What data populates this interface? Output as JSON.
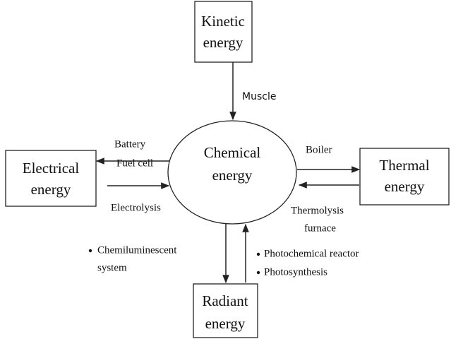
{
  "nodes": [
    {
      "id": "kinetic",
      "label": [
        "Kinetic",
        "energy"
      ]
    },
    {
      "id": "chemical",
      "label": [
        "Chemical",
        "energy"
      ]
    },
    {
      "id": "electrical",
      "label": [
        "Electrical",
        "energy"
      ]
    },
    {
      "id": "thermal",
      "label": [
        "Thermal",
        "energy"
      ]
    },
    {
      "id": "radiant",
      "label": [
        "Radiant",
        "energy"
      ]
    }
  ],
  "edges": [
    {
      "from": "kinetic",
      "to": "chemical",
      "label": [
        "Muscle"
      ]
    },
    {
      "from": "chemical",
      "to": "electrical",
      "label": [
        "Battery",
        "Fuel cell"
      ]
    },
    {
      "from": "electrical",
      "to": "chemical",
      "label": [
        "Electrolysis"
      ]
    },
    {
      "from": "chemical",
      "to": "thermal",
      "label": [
        "Boiler"
      ]
    },
    {
      "from": "thermal",
      "to": "chemical",
      "label": [
        "Thermolysis",
        "furnace"
      ]
    },
    {
      "from": "chemical",
      "to": "radiant",
      "label": [
        "Chemiluminescent",
        "system"
      ]
    },
    {
      "from": "radiant",
      "to": "chemical",
      "label": [
        "Photochemical reactor",
        "Photosynthesis"
      ]
    }
  ]
}
